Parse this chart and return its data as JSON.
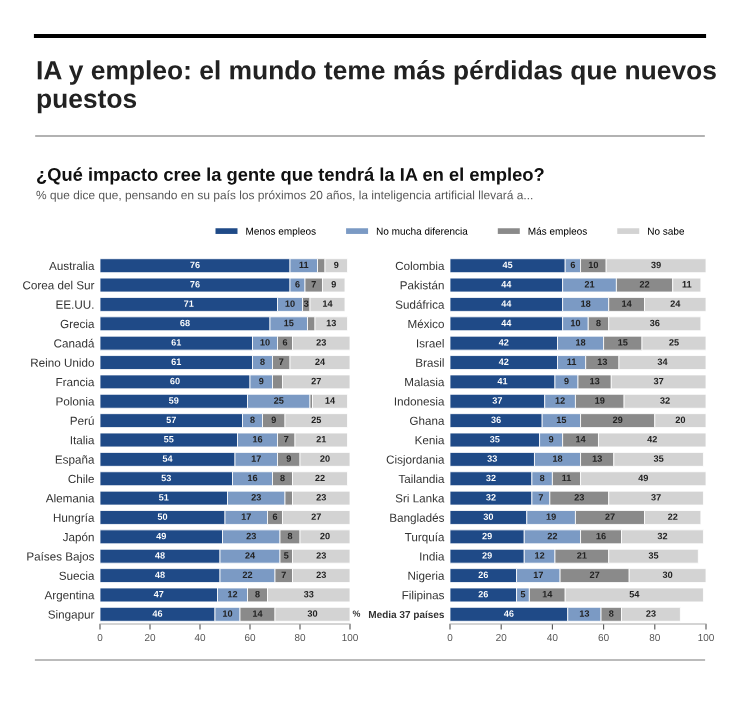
{
  "chart_data": [
    {
      "type": "bar",
      "orientation": "horizontal",
      "stacked": true,
      "title": "IA y empleo: el mundo teme más pérdidas que nuevos puestos",
      "subtitle": "¿Qué impacto cree la gente que tendrá la IA en el empleo?",
      "annotations": [
        "% que dice que, pensando en su país los próximos 20 años, la inteligencia artificial llevará a...",
        "%"
      ],
      "legend": "top",
      "categories": [
        "Australia",
        "Corea del Sur",
        "EE.UU.",
        "Grecia",
        "Canadá",
        "Reino Unido",
        "Francia",
        "Polonia",
        "Perú",
        "Italia",
        "España",
        "Chile",
        "Alemania",
        "Hungría",
        "Japón",
        "Países Bajos",
        "Suecia",
        "Argentina",
        "Singapur"
      ],
      "xlim": [
        0,
        100
      ],
      "xticks": [
        0,
        20,
        40,
        60,
        80,
        100
      ],
      "series": [
        {
          "name": "Menos empleos",
          "color": "#1f4a87",
          "values": [
            76,
            76,
            71,
            68,
            61,
            61,
            60,
            59,
            57,
            55,
            54,
            53,
            51,
            50,
            49,
            48,
            48,
            47,
            46
          ],
          "value_labels": [
            "76",
            "76",
            "71",
            "68",
            "61",
            "61",
            "60",
            "59",
            "57",
            "55",
            "54",
            "53",
            "51",
            "50",
            "49",
            "48",
            "48",
            "47",
            "46"
          ]
        },
        {
          "name": "No mucha diferencia",
          "color": "#7b9ac4",
          "values": [
            11,
            6,
            10,
            15,
            10,
            8,
            9,
            25,
            8,
            16,
            17,
            16,
            23,
            17,
            23,
            24,
            22,
            12,
            10
          ],
          "value_labels": [
            "11",
            "6",
            "10",
            "15",
            "10",
            "8",
            "9",
            "25",
            "8",
            "16",
            "17",
            "16",
            "23",
            "17",
            "23",
            "24",
            "22",
            "12",
            "10"
          ]
        },
        {
          "name": "Más empleos",
          "color": "#8a8a8a",
          "values": [
            3,
            7,
            3,
            3,
            6,
            7,
            4,
            1,
            9,
            7,
            9,
            8,
            3,
            6,
            8,
            5,
            7,
            8,
            14
          ],
          "value_labels": [
            null,
            "7",
            "3",
            null,
            "6",
            "7",
            null,
            null,
            "9",
            "7",
            "9",
            "8",
            null,
            "6",
            "8",
            "5",
            "7",
            "8",
            "14"
          ]
        },
        {
          "name": "No sabe",
          "color": "#d3d3d3",
          "values": [
            9,
            9,
            14,
            13,
            23,
            24,
            27,
            14,
            25,
            21,
            20,
            22,
            23,
            27,
            20,
            23,
            23,
            33,
            30
          ],
          "value_labels": [
            "9",
            "9",
            "14",
            "13",
            "23",
            "24",
            "27",
            "14",
            "25",
            "21",
            "20",
            "22",
            "23",
            "27",
            "20",
            "23",
            "23",
            "33",
            "30"
          ]
        }
      ]
    },
    {
      "type": "bar",
      "orientation": "horizontal",
      "stacked": true,
      "categories": [
        "Colombia",
        "Pakistán",
        "Sudáfrica",
        "México",
        "Israel",
        "Brasil",
        "Malasia",
        "Indonesia",
        "Ghana",
        "Kenia",
        "Cisjordania",
        "Tailandia",
        "Sri Lanka",
        "Bangladés",
        "Turquía",
        "India",
        "Nigeria",
        "Filipinas",
        "Media 37 países"
      ],
      "xlim": [
        0,
        100
      ],
      "xticks": [
        0,
        20,
        40,
        60,
        80,
        100
      ],
      "series": [
        {
          "color": "#1f4a87",
          "values": [
            45,
            44,
            44,
            44,
            42,
            42,
            41,
            37,
            36,
            35,
            33,
            32,
            32,
            30,
            29,
            29,
            26,
            26,
            46
          ],
          "value_labels": [
            "45",
            "44",
            "44",
            "44",
            "42",
            "42",
            "41",
            "37",
            "36",
            "35",
            "33",
            "32",
            "32",
            "30",
            "29",
            "29",
            "26",
            "26",
            "46"
          ]
        },
        {
          "color": "#7b9ac4",
          "values": [
            6,
            21,
            18,
            10,
            18,
            11,
            9,
            12,
            15,
            9,
            18,
            8,
            7,
            19,
            22,
            12,
            17,
            5,
            13
          ],
          "value_labels": [
            "6",
            "21",
            "18",
            "10",
            "18",
            "11",
            "9",
            "12",
            "15",
            "9",
            "18",
            "8",
            "7",
            "19",
            "22",
            "12",
            "17",
            "5",
            "13"
          ]
        },
        {
          "color": "#8a8a8a",
          "values": [
            10,
            22,
            14,
            8,
            15,
            13,
            13,
            19,
            29,
            14,
            13,
            11,
            23,
            27,
            16,
            21,
            27,
            14,
            8
          ],
          "value_labels": [
            "10",
            "22",
            "14",
            "8",
            "15",
            "13",
            "13",
            "19",
            "29",
            "14",
            "13",
            "11",
            "23",
            "27",
            "16",
            "21",
            "27",
            "14",
            "8"
          ]
        },
        {
          "color": "#d3d3d3",
          "values": [
            39,
            11,
            24,
            36,
            25,
            34,
            37,
            32,
            20,
            42,
            35,
            49,
            37,
            22,
            32,
            35,
            30,
            54,
            23
          ],
          "value_labels": [
            "39",
            "11",
            "24",
            "36",
            "25",
            "34",
            "37",
            "32",
            "20",
            "42",
            "35",
            "49",
            "37",
            "22",
            "32",
            "35",
            "30",
            "54",
            "23"
          ]
        }
      ]
    }
  ]
}
